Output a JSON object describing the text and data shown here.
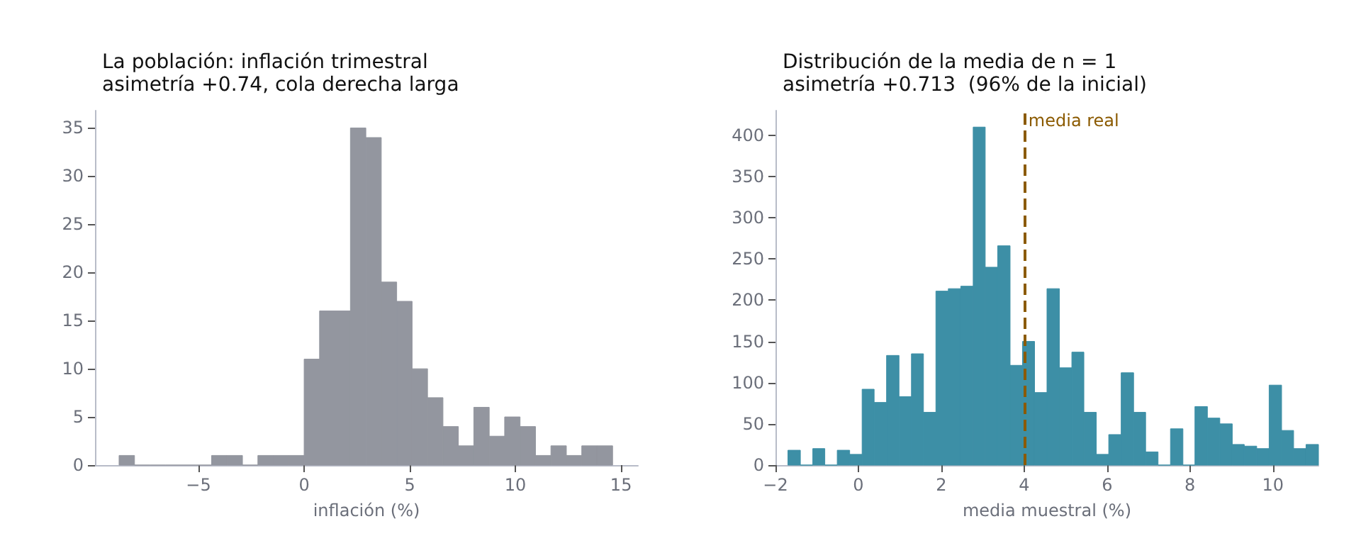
{
  "chart_data": [
    {
      "type": "histogram",
      "title": "La población: inflación trimestral",
      "subtitle": "asimetría +0.74, cola derecha larga",
      "xlabel": "inflación (%)",
      "color": "#93969f",
      "bins": [
        -8.76,
        -8.03,
        -7.3,
        -6.57,
        -5.84,
        -5.11,
        -4.38,
        -3.65,
        -2.92,
        -2.19,
        -1.46,
        -0.73,
        0.0,
        0.73,
        1.46,
        2.19,
        2.92,
        3.65,
        4.38,
        5.11,
        5.84,
        6.57,
        7.3,
        8.03,
        8.76,
        9.49,
        10.22,
        10.95,
        11.68,
        12.41,
        13.14,
        13.87,
        14.6
      ],
      "values": [
        1,
        0,
        0,
        0,
        0,
        0,
        1,
        1,
        0,
        1,
        1,
        1,
        11,
        16,
        16,
        35,
        34,
        19,
        17,
        10,
        7,
        4,
        2,
        6,
        3,
        5,
        4,
        1,
        2,
        1,
        2,
        2
      ],
      "xlim": [
        -9.9,
        15.8
      ],
      "ylim": [
        0,
        36.8
      ],
      "xticks": [
        -5,
        0,
        5,
        10,
        15
      ],
      "yticks": [
        0,
        5,
        10,
        15,
        20,
        25,
        30,
        35
      ],
      "grid": false
    },
    {
      "type": "histogram",
      "title": "Distribución de la media de n = 1",
      "subtitle": "asimetría +0.713  (96% de la inicial)",
      "xlabel": "media muestral (%)",
      "color": "#3d8fa6",
      "bins": [
        -1.7,
        -1.4,
        -1.1,
        -0.81,
        -0.51,
        -0.21,
        0.09,
        0.38,
        0.68,
        0.98,
        1.28,
        1.57,
        1.87,
        2.17,
        2.47,
        2.77,
        3.06,
        3.36,
        3.66,
        3.96,
        4.25,
        4.55,
        4.85,
        5.15,
        5.44,
        5.74,
        6.04,
        6.34,
        6.64,
        6.93,
        7.23,
        7.53,
        7.83,
        8.12,
        8.42,
        8.72,
        9.02,
        9.31,
        9.61,
        9.91,
        10.21,
        10.5,
        10.8,
        11.1
      ],
      "values": [
        18,
        0,
        20,
        0,
        18,
        13,
        92,
        76,
        133,
        83,
        135,
        64,
        211,
        214,
        217,
        410,
        240,
        266,
        121,
        150,
        88,
        214,
        118,
        137,
        64,
        13,
        37,
        112,
        64,
        16,
        0,
        44,
        0,
        71,
        57,
        50,
        25,
        23,
        20,
        97,
        42,
        20,
        25
      ],
      "xlim": [
        -2,
        11.1
      ],
      "ylim": [
        0,
        430
      ],
      "xticks": [
        -2,
        0,
        2,
        4,
        6,
        8,
        10
      ],
      "yticks": [
        0,
        50,
        100,
        150,
        200,
        250,
        300,
        350,
        400
      ],
      "grid": false,
      "ref_lines": [
        {
          "axis": "x",
          "value": 4,
          "label": "media real",
          "color": "#8b5a00",
          "line_style": "dashed"
        }
      ]
    }
  ]
}
